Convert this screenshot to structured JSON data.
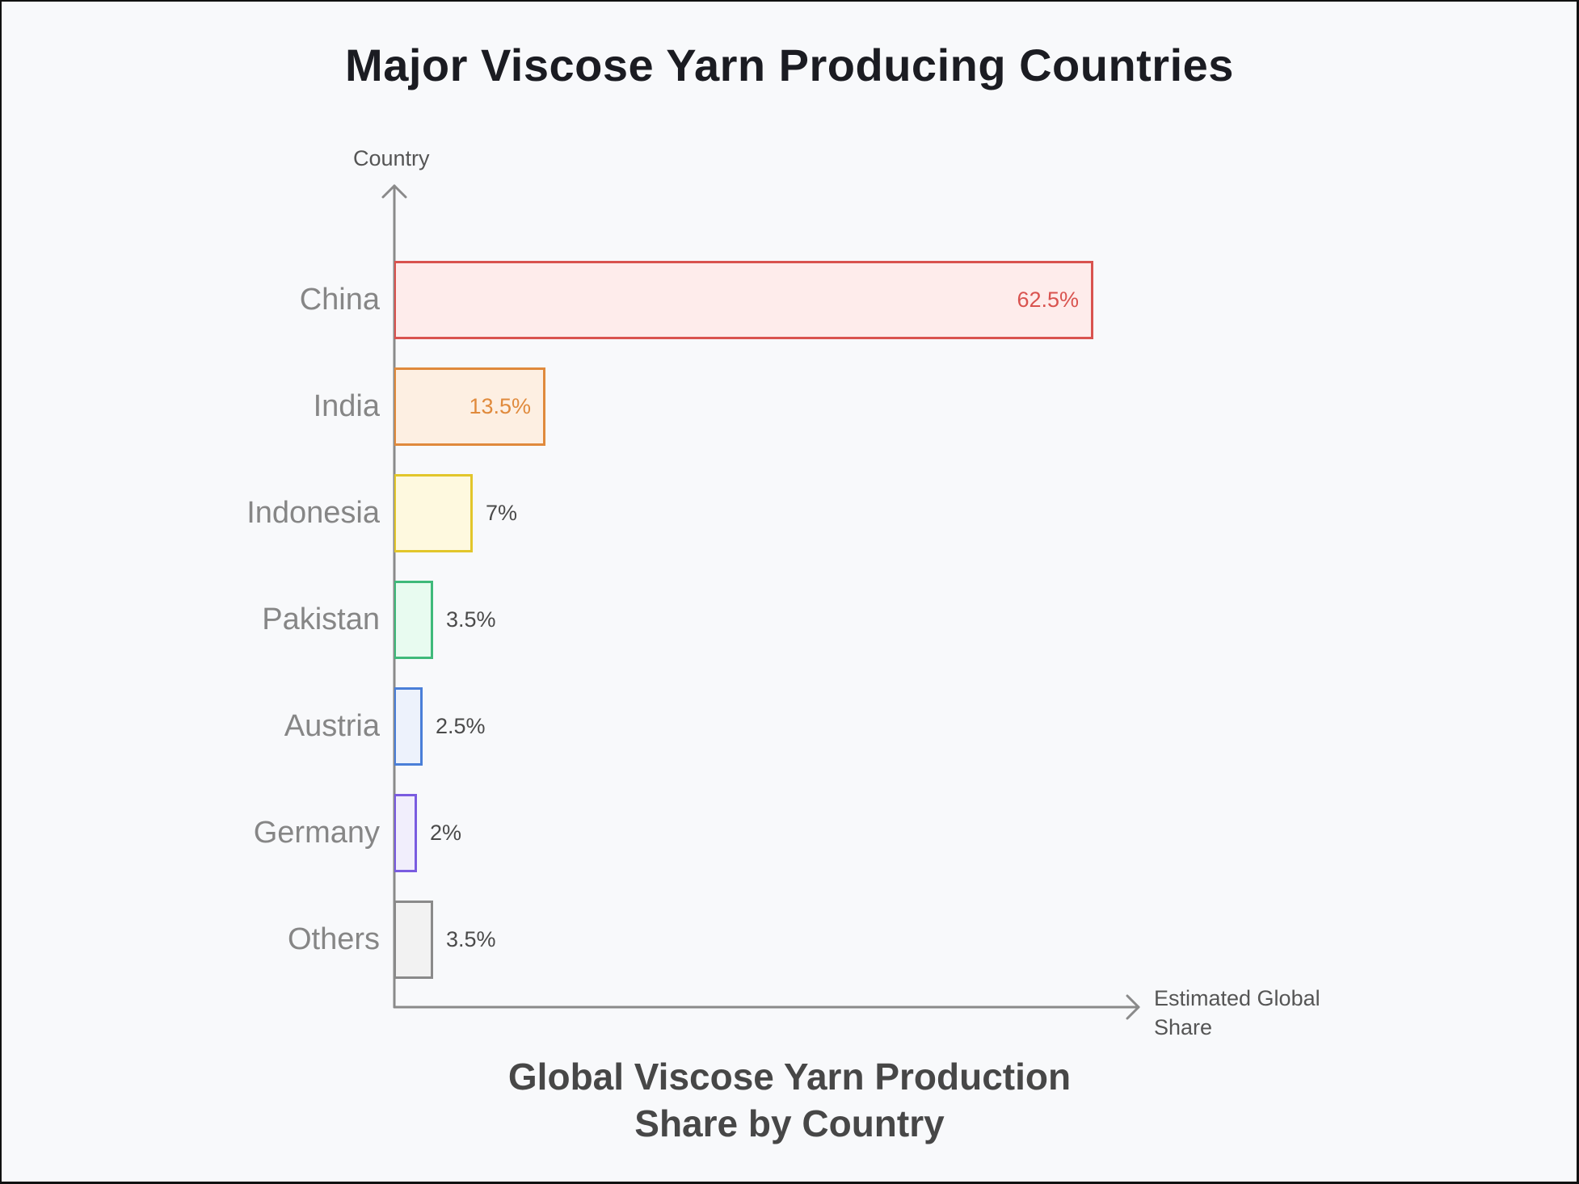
{
  "title": "Major Viscose Yarn Producing Countries",
  "subtitle_line1": "Global Viscose Yarn Production",
  "subtitle_line2": "Share by Country",
  "y_axis_label": "Country",
  "x_axis_label": "Estimated Global Share",
  "bars": [
    {
      "country": "China",
      "value": 62.5,
      "label": "62.5%",
      "stroke": "#d9534f",
      "fill": "#feeceb",
      "text_color": "#d9534f",
      "label_inside": true
    },
    {
      "country": "India",
      "value": 13.5,
      "label": "13.5%",
      "stroke": "#e08a3c",
      "fill": "#fdefe2",
      "text_color": "#e08a3c",
      "label_inside": true
    },
    {
      "country": "Indonesia",
      "value": 7,
      "label": "7%",
      "stroke": "#e2c62b",
      "fill": "#fef9df",
      "text_color": "#4a4a4a",
      "label_inside": false
    },
    {
      "country": "Pakistan",
      "value": 3.5,
      "label": "3.5%",
      "stroke": "#3fb97a",
      "fill": "#e8fbf0",
      "text_color": "#4a4a4a",
      "label_inside": false
    },
    {
      "country": "Austria",
      "value": 2.5,
      "label": "2.5%",
      "stroke": "#4a7fd8",
      "fill": "#edf2fc",
      "text_color": "#4a4a4a",
      "label_inside": false
    },
    {
      "country": "Germany",
      "value": 2,
      "label": "2%",
      "stroke": "#7a5ce0",
      "fill": "#f1eefc",
      "text_color": "#4a4a4a",
      "label_inside": false
    },
    {
      "country": "Others",
      "value": 3.5,
      "label": "3.5%",
      "stroke": "#8a8a8a",
      "fill": "#f2f2f2",
      "text_color": "#4a4a4a",
      "label_inside": false
    }
  ],
  "chart_data": {
    "type": "bar",
    "orientation": "horizontal",
    "title": "Major Viscose Yarn Producing Countries",
    "subtitle": "Global Viscose Yarn Production Share by Country",
    "categories": [
      "China",
      "India",
      "Indonesia",
      "Pakistan",
      "Austria",
      "Germany",
      "Others"
    ],
    "values": [
      62.5,
      13.5,
      7,
      3.5,
      2.5,
      2,
      3.5
    ],
    "value_labels": [
      "62.5%",
      "13.5%",
      "7%",
      "3.5%",
      "2.5%",
      "2%",
      "3.5%"
    ],
    "colors": [
      "#d9534f",
      "#e08a3c",
      "#e2c62b",
      "#3fb97a",
      "#4a7fd8",
      "#7a5ce0",
      "#8a8a8a"
    ],
    "xlabel": "Estimated Global Share",
    "ylabel": "Country",
    "unit": "%",
    "grid": false,
    "legend": null
  }
}
